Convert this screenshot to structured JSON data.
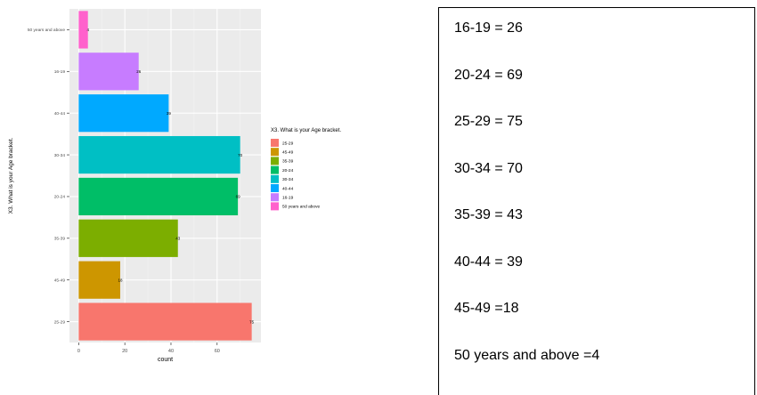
{
  "chart_data": {
    "type": "bar",
    "orientation": "horizontal",
    "categories": [
      "50 years and above",
      "16-19",
      "40-44",
      "30-34",
      "20-24",
      "35-39",
      "45-49",
      "25-29"
    ],
    "values": [
      4,
      26,
      39,
      70,
      69,
      43,
      18,
      75
    ],
    "data_labels": [
      "4",
      "26",
      "39",
      "70",
      "69",
      "43",
      "18",
      "75"
    ],
    "bar_colors": [
      "#FF61CC",
      "#C77CFF",
      "#00A9FF",
      "#00BFC4",
      "#00BE67",
      "#7CAE00",
      "#CD9600",
      "#F8766D"
    ],
    "xlabel": "count",
    "ylabel": "X3. What is your Age bracket.",
    "x_ticks": [
      0,
      20,
      40,
      60
    ],
    "xlim": [
      -4,
      79
    ],
    "grid": true,
    "panel_background": "#EBEBEB",
    "legend": {
      "title": "X3. What is your Age bracket.",
      "placement": "right",
      "entries": [
        {
          "label": "25-29",
          "color": "#F8766D"
        },
        {
          "label": "45-49",
          "color": "#CD9600"
        },
        {
          "label": "35-39",
          "color": "#7CAE00"
        },
        {
          "label": "20-24",
          "color": "#00BE67"
        },
        {
          "label": "30-34",
          "color": "#00BFC4"
        },
        {
          "label": "40-44",
          "color": "#00A9FF"
        },
        {
          "label": "16-19",
          "color": "#C77CFF"
        },
        {
          "label": "50 years and above",
          "color": "#FF61CC"
        }
      ]
    }
  },
  "text_box": {
    "lines": [
      "16-19 = 26",
      "20-24 = 69",
      "25-29 = 75",
      "30-34 = 70",
      "35-39 = 43",
      "40-44 = 39",
      "45-49 =18",
      "50 years and above =4"
    ]
  }
}
